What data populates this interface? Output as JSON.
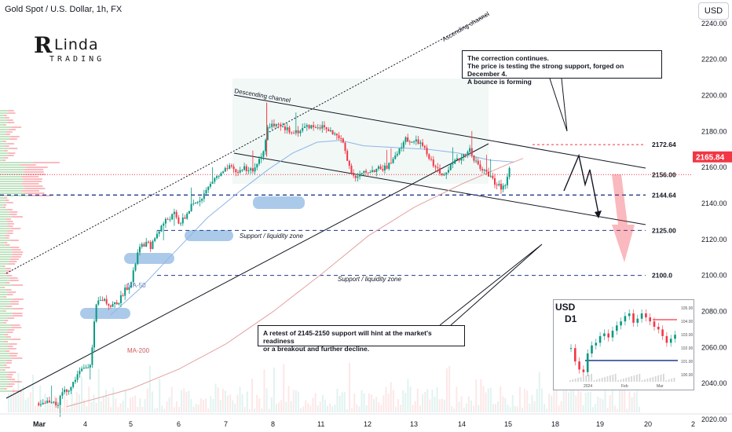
{
  "header": {
    "title": "Gold Spot / U.S. Dollar, 1h, FX",
    "currency": "USD"
  },
  "logo": {
    "big": "R",
    "word": "Linda",
    "sub": "TRADING"
  },
  "colors": {
    "bull": "#089981",
    "bear": "#f23645",
    "ma50": "#90b4e6",
    "ma200": "#e3a3a3",
    "line": "#131722",
    "zone": "#8fb8e3",
    "price_badge": "#f23645"
  },
  "chart_data": [
    {
      "type": "candlestick",
      "title": "Gold Spot / U.S. Dollar, 1h, FX",
      "ylim": [
        2013,
        2253
      ],
      "y_ticks": [
        2020,
        2040,
        2060,
        2080,
        2100,
        2120,
        2140,
        2160,
        2180,
        2200,
        2220,
        2240
      ],
      "x_ticks": [
        "Mar",
        "4",
        "5",
        "6",
        "7",
        "8",
        "11",
        "12",
        "13",
        "14",
        "15",
        "18",
        "19",
        "20",
        "2"
      ],
      "close_path": [
        [
          0,
          2029
        ],
        [
          0.35,
          2031
        ],
        [
          0.42,
          2026
        ],
        [
          0.5,
          2035
        ],
        [
          0.7,
          2038
        ],
        [
          0.82,
          2045
        ],
        [
          1.0,
          2049
        ],
        [
          1.12,
          2052
        ],
        [
          1.2,
          2076
        ],
        [
          1.25,
          2085
        ],
        [
          1.4,
          2087
        ],
        [
          1.55,
          2083
        ],
        [
          1.75,
          2086
        ],
        [
          1.85,
          2092
        ],
        [
          2.0,
          2096
        ],
        [
          2.1,
          2108
        ],
        [
          2.15,
          2114
        ],
        [
          2.3,
          2118
        ],
        [
          2.42,
          2116
        ],
        [
          2.55,
          2124
        ],
        [
          2.7,
          2130
        ],
        [
          2.9,
          2134
        ],
        [
          3.0,
          2129
        ],
        [
          3.1,
          2131
        ],
        [
          3.25,
          2138
        ],
        [
          3.35,
          2140
        ],
        [
          3.55,
          2146
        ],
        [
          3.75,
          2154
        ],
        [
          3.9,
          2156
        ],
        [
          4.05,
          2160
        ],
        [
          4.25,
          2157
        ],
        [
          4.35,
          2160
        ],
        [
          4.6,
          2158
        ],
        [
          4.72,
          2166
        ],
        [
          4.8,
          2170
        ],
        [
          4.9,
          2184
        ],
        [
          5.05,
          2183
        ],
        [
          5.25,
          2181
        ],
        [
          5.5,
          2180
        ],
        [
          5.7,
          2183
        ],
        [
          5.9,
          2183
        ],
        [
          6.05,
          2182
        ],
        [
          6.25,
          2179
        ],
        [
          6.45,
          2174
        ],
        [
          6.6,
          2160
        ],
        [
          6.72,
          2154
        ],
        [
          6.85,
          2156
        ],
        [
          7.0,
          2158
        ],
        [
          7.2,
          2159
        ],
        [
          7.4,
          2160
        ],
        [
          7.6,
          2166
        ],
        [
          7.8,
          2176
        ],
        [
          7.95,
          2174
        ],
        [
          8.1,
          2174
        ],
        [
          8.2,
          2170
        ],
        [
          8.3,
          2165
        ],
        [
          8.45,
          2160
        ],
        [
          8.55,
          2155
        ],
        [
          8.7,
          2160
        ],
        [
          8.9,
          2164
        ],
        [
          9.05,
          2168
        ],
        [
          9.15,
          2170
        ],
        [
          9.25,
          2165
        ],
        [
          9.35,
          2160
        ],
        [
          9.45,
          2158
        ],
        [
          9.6,
          2156
        ],
        [
          9.7,
          2150
        ],
        [
          9.85,
          2149
        ],
        [
          9.95,
          2152
        ],
        [
          10.05,
          2165.84
        ]
      ],
      "ma50": [
        [
          1.55,
          2078
        ],
        [
          2.2,
          2093
        ],
        [
          2.8,
          2110
        ],
        [
          3.6,
          2132
        ],
        [
          4.3,
          2147
        ],
        [
          4.9,
          2159
        ],
        [
          5.4,
          2168
        ],
        [
          5.9,
          2174
        ],
        [
          6.4,
          2175
        ],
        [
          6.9,
          2172
        ],
        [
          7.6,
          2171
        ],
        [
          8.3,
          2170
        ],
        [
          8.9,
          2168
        ],
        [
          9.6,
          2164
        ],
        [
          10.1,
          2163
        ]
      ],
      "ma200": [
        [
          0.6,
          2027
        ],
        [
          2.0,
          2037
        ],
        [
          3.0,
          2048
        ],
        [
          4.0,
          2062
        ],
        [
          5.0,
          2080
        ],
        [
          6.0,
          2101
        ],
        [
          7.0,
          2122
        ],
        [
          8.0,
          2138
        ],
        [
          9.0,
          2151
        ],
        [
          10.0,
          2162
        ],
        [
          10.3,
          2165
        ]
      ],
      "levels": [
        {
          "label": "2172.64",
          "price": 2172.64,
          "style": "dashed-red"
        },
        {
          "label": "2156.00",
          "price": 2156.0,
          "style": "dotted-red"
        },
        {
          "label": "2144.64",
          "price": 2144.64,
          "style": "dashed-blue"
        },
        {
          "label": "2125.00",
          "price": 2125.0,
          "style": "dashed-blue"
        },
        {
          "label": "2100.0",
          "price": 2100.0,
          "style": "dashed-blue"
        }
      ],
      "last_price": "2165.84",
      "annotations": {
        "ascending_channel": "Ascending channel",
        "descending_channel": "Descending channel",
        "support_zone_1": "Support / liquidity zone",
        "support_zone_2": "Support / liquidity zone",
        "ma50": "MA-50",
        "ma200": "MA-200"
      }
    },
    {
      "type": "candlestick",
      "title": "D1 inset",
      "symbol": "USD",
      "timeframe": "D1",
      "y_ticks": [
        "105.00",
        "104.00",
        "103.00",
        "102.00",
        "101.00",
        "100.00"
      ],
      "x_ticks": [
        "2024",
        "Feb",
        "Mar"
      ],
      "closes": [
        102.0,
        101.0,
        100.4,
        100.2,
        101.6,
        102.2,
        102.4,
        102.9,
        103.1,
        102.8,
        103.3,
        103.7,
        104.0,
        104.4,
        104.6,
        103.9,
        104.2,
        104.6,
        104.3,
        104.0,
        103.6,
        103.4,
        102.9,
        102.4,
        102.7,
        103.0
      ]
    }
  ],
  "callouts": {
    "top": {
      "line1": "The correction continues.",
      "line2": "The price is testing the strong support, forged on December 4.",
      "line3": "A bounce is forming"
    },
    "bottom": {
      "line1": "A retest of 2145-2150 support will hint at the market's readiness",
      "line2": "or a breakout and further decline."
    }
  }
}
